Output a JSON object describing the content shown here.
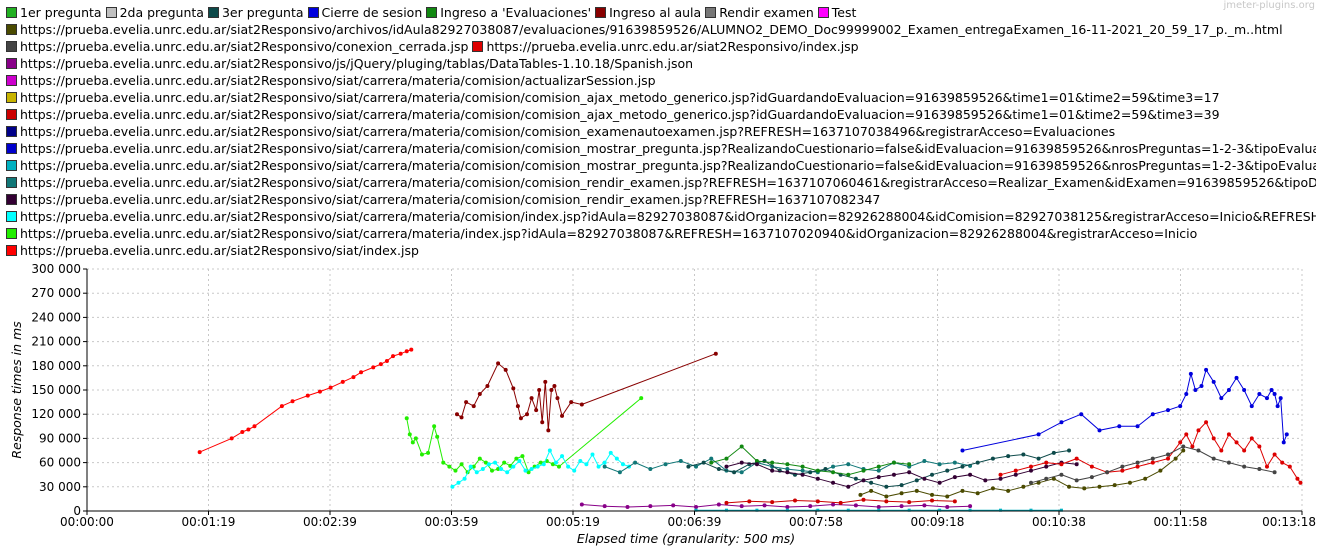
{
  "watermark": "jmeter-plugins.org",
  "legend_rows": [
    [
      {
        "name": "1er pregunta",
        "color": "#22b022"
      },
      {
        "name": "2da pregunta",
        "color": "#c0c0c0"
      },
      {
        "name": "3er pregunta",
        "color": "#0d4a4a"
      },
      {
        "name": "Cierre de sesion",
        "color": "#0000dd"
      },
      {
        "name": "Ingreso a 'Evaluaciones'",
        "color": "#118811"
      },
      {
        "name": "Ingreso al aula",
        "color": "#880000"
      },
      {
        "name": "Rendir examen",
        "color": "#777777"
      },
      {
        "name": "Test",
        "color": "#ff00ff"
      }
    ],
    [
      {
        "name": "https://prueba.evelia.unrc.edu.ar/siat2Responsivo/archivos/idAula82927038087/evaluaciones/91639859526/ALUMNO2_DEMO_Doc99999002_Examen_entregaExamen_16-11-2021_20_59_17_p._m..html",
        "color": "#4a4a00"
      }
    ],
    [
      {
        "name": "https://prueba.evelia.unrc.edu.ar/siat2Responsivo/conexion_cerrada.jsp",
        "color": "#444444"
      },
      {
        "name": "https://prueba.evelia.unrc.edu.ar/siat2Responsivo/index.jsp",
        "color": "#dd0000"
      }
    ],
    [
      {
        "name": "https://prueba.evelia.unrc.edu.ar/siat2Responsivo/js/jQuery/pluging/tablas/DataTables-1.10.18/Spanish.json",
        "color": "#880088"
      }
    ],
    [
      {
        "name": "https://prueba.evelia.unrc.edu.ar/siat2Responsivo/siat/carrera/materia/comision/actualizarSession.jsp",
        "color": "#cc00cc"
      }
    ],
    [
      {
        "name": "https://prueba.evelia.unrc.edu.ar/siat2Responsivo/siat/carrera/materia/comision/comision_ajax_metodo_generico.jsp?idGuardandoEvaluacion=91639859526&time1=01&time2=59&time3=17",
        "color": "#c8b400"
      }
    ],
    [
      {
        "name": "https://prueba.evelia.unrc.edu.ar/siat2Responsivo/siat/carrera/materia/comision/comision_ajax_metodo_generico.jsp?idGuardandoEvaluacion=91639859526&time1=01&time2=59&time3=39",
        "color": "#cc0000"
      }
    ],
    [
      {
        "name": "https://prueba.evelia.unrc.edu.ar/siat2Responsivo/siat/carrera/materia/comision/comision_examenautoexamen.jsp?REFRESH=1637107038496&registrarAcceso=Evaluaciones",
        "color": "#000088"
      }
    ],
    [
      {
        "name": "https://prueba.evelia.unrc.edu.ar/siat2Responsivo/siat/carrera/materia/comision/comision_mostrar_pregunta.jsp?RealizandoCuestionario=false&idEvaluacion=91639859526&nrosPreguntas=1-2-3&tipoEvalua",
        "color": "#0000cc"
      }
    ],
    [
      {
        "name": "https://prueba.evelia.unrc.edu.ar/siat2Responsivo/siat/carrera/materia/comision/comision_mostrar_pregunta.jsp?RealizandoCuestionario=false&idEvaluacion=91639859526&nrosPreguntas=1-2-3&tipoEvalua",
        "color": "#00b0c0"
      }
    ],
    [
      {
        "name": "https://prueba.evelia.unrc.edu.ar/siat2Responsivo/siat/carrera/materia/comision/comision_rendir_examen.jsp?REFRESH=1637107060461&registrarAcceso=Realizar_Examen&idExamen=91639859526&tipoDis",
        "color": "#117777"
      }
    ],
    [
      {
        "name": "https://prueba.evelia.unrc.edu.ar/siat2Responsivo/siat/carrera/materia/comision/comision_rendir_examen.jsp?REFRESH=1637107082347",
        "color": "#330033"
      }
    ],
    [
      {
        "name": "https://prueba.evelia.unrc.edu.ar/siat2Responsivo/siat/carrera/materia/comision/index.jsp?idAula=82927038087&idOrganizacion=82926288004&idComision=82927038125&registrarAcceso=Inicio&REFRESH=",
        "color": "#00ffff"
      }
    ],
    [
      {
        "name": "https://prueba.evelia.unrc.edu.ar/siat2Responsivo/siat/carrera/materia/index.jsp?idAula=82927038087&REFRESH=1637107020940&idOrganizacion=82926288004&registrarAcceso=Inicio",
        "color": "#22ee00"
      }
    ],
    [
      {
        "name": "https://prueba.evelia.unrc.edu.ar/siat2Responsivo/siat/index.jsp",
        "color": "#ff0000"
      }
    ]
  ],
  "chart_data": {
    "type": "line",
    "xlabel": "Elapsed time (granularity: 500 ms)",
    "ylabel": "Response times in ms",
    "xlim": [
      0,
      798
    ],
    "ylim": [
      0,
      300000
    ],
    "x_ticks": [
      {
        "value": 0,
        "label": "00:00:00"
      },
      {
        "value": 79.8,
        "label": "00:01:19"
      },
      {
        "value": 159.6,
        "label": "00:02:39"
      },
      {
        "value": 239.4,
        "label": "00:03:59"
      },
      {
        "value": 319.2,
        "label": "00:05:19"
      },
      {
        "value": 399,
        "label": "00:06:39"
      },
      {
        "value": 478.8,
        "label": "00:07:58"
      },
      {
        "value": 558.6,
        "label": "00:09:18"
      },
      {
        "value": 638.4,
        "label": "00:10:38"
      },
      {
        "value": 718.2,
        "label": "00:11:58"
      },
      {
        "value": 798,
        "label": "00:13:18"
      }
    ],
    "y_ticks": [
      {
        "value": 0,
        "label": "0"
      },
      {
        "value": 30000,
        "label": "30 000"
      },
      {
        "value": 60000,
        "label": "60 000"
      },
      {
        "value": 90000,
        "label": "90 000"
      },
      {
        "value": 120000,
        "label": "120 000"
      },
      {
        "value": 150000,
        "label": "150 000"
      },
      {
        "value": 180000,
        "label": "180 000"
      },
      {
        "value": 210000,
        "label": "210 000"
      },
      {
        "value": 240000,
        "label": "240 000"
      },
      {
        "value": 270000,
        "label": "270 000"
      },
      {
        "value": 300000,
        "label": "300 000"
      }
    ],
    "grid": true,
    "series": [
      {
        "name": "https://prueba.evelia.unrc.edu.ar/siat2Responsivo/siat/index.jsp",
        "color": "#ff0000",
        "x": [
          74,
          95,
          102,
          106,
          110,
          128,
          135,
          145,
          153,
          160,
          168,
          175,
          180,
          188,
          193,
          197,
          201,
          206,
          210,
          213
        ],
        "y": [
          73000,
          90000,
          98000,
          101000,
          105000,
          130000,
          136000,
          143000,
          148000,
          153000,
          160000,
          166000,
          172000,
          178000,
          182000,
          186000,
          192000,
          195000,
          198000,
          200000
        ]
      },
      {
        "name": "Ingreso al aula",
        "color": "#880000",
        "x": [
          243,
          246,
          249,
          254,
          258,
          263,
          270,
          275,
          280,
          283,
          285,
          289,
          292,
          295,
          297,
          299,
          301,
          303,
          305,
          307,
          309,
          312,
          318,
          325,
          413
        ],
        "y": [
          120000,
          116000,
          135000,
          130000,
          145000,
          155000,
          183000,
          175000,
          152000,
          130000,
          115000,
          120000,
          140000,
          125000,
          150000,
          110000,
          160000,
          100000,
          150000,
          155000,
          140000,
          118000,
          135000,
          132000,
          195000
        ]
      },
      {
        "name": "https://prueba.evelia.unrc.edu.ar/siat2Responsivo/siat/carrera/materia/index.jsp?idAula=82927038087&REFRESH=1637107020940&idOrganizacion=82926288004&registrarAcceso=Inicio",
        "color": "#22ee00",
        "x": [
          210,
          212,
          214,
          216,
          220,
          224,
          228,
          230,
          234,
          238,
          242,
          246,
          250,
          254,
          258,
          262,
          266,
          270,
          274,
          278,
          282,
          286,
          290,
          294,
          298,
          302,
          306,
          310,
          364
        ],
        "y": [
          115000,
          95000,
          85000,
          90000,
          70000,
          72000,
          105000,
          92000,
          60000,
          55000,
          50000,
          58000,
          48000,
          55000,
          65000,
          60000,
          50000,
          52000,
          60000,
          56000,
          65000,
          68000,
          48000,
          55000,
          60000,
          62000,
          58000,
          55000,
          140000
        ]
      },
      {
        "name": "https://prueba.evelia.unrc.edu.ar/siat2Responsivo/siat/carrera/materia/comision/index.jsp?idAula=82927038087&idOrganizacion=82926288004&idComision=82927038125&registrarAcceso=Inicio&REFRESH=",
        "color": "#00ffff",
        "x": [
          240,
          244,
          248,
          252,
          256,
          260,
          264,
          268,
          272,
          276,
          280,
          284,
          288,
          292,
          296,
          300,
          304,
          308,
          312,
          316,
          320,
          324,
          328,
          332,
          336,
          340,
          344,
          348,
          352,
          356
        ],
        "y": [
          30000,
          35000,
          40000,
          55000,
          48000,
          52000,
          58000,
          60000,
          52000,
          48000,
          55000,
          62000,
          50000,
          52000,
          55000,
          58000,
          75000,
          60000,
          68000,
          55000,
          50000,
          62000,
          58000,
          70000,
          55000,
          60000,
          72000,
          65000,
          58000,
          55000
        ]
      },
      {
        "name": "https://prueba.evelia.unrc.edu.ar/siat2Responsivo/siat/carrera/materia/comision/comision_rendir_examen.jsp?REFRESH=1637107060461&registrarAcceso=Realizar_Examen&idExamen=91639859526&tipoDis",
        "color": "#117777",
        "x": [
          340,
          350,
          360,
          370,
          380,
          390,
          400,
          410,
          420,
          430,
          440,
          450,
          460,
          470,
          480,
          490,
          500,
          510,
          520,
          530,
          540,
          550,
          560,
          570,
          580
        ],
        "y": [
          55000,
          48000,
          60000,
          52000,
          58000,
          62000,
          55000,
          65000,
          50000,
          48000,
          60000,
          55000,
          52000,
          50000,
          48000,
          55000,
          58000,
          52000,
          50000,
          60000,
          55000,
          62000,
          58000,
          60000,
          56000
        ]
      },
      {
        "name": "3er pregunta",
        "color": "#0d4a4a",
        "x": [
          395,
          405,
          415,
          425,
          435,
          445,
          455,
          465,
          475,
          485,
          495,
          505,
          515,
          525,
          535,
          545,
          555,
          565,
          575,
          585,
          595,
          605,
          615,
          625,
          635,
          645
        ],
        "y": [
          55000,
          60000,
          52000,
          48000,
          58000,
          62000,
          50000,
          45000,
          48000,
          52000,
          45000,
          40000,
          35000,
          30000,
          32000,
          38000,
          45000,
          50000,
          55000,
          60000,
          65000,
          68000,
          70000,
          65000,
          72000,
          75000
        ]
      },
      {
        "name": "Ingreso a 'Evaluaciones'",
        "color": "#118811",
        "x": [
          410,
          420,
          430,
          440,
          450,
          460,
          470,
          480,
          490,
          500,
          510,
          520,
          530,
          540
        ],
        "y": [
          60000,
          65000,
          80000,
          62000,
          60000,
          58000,
          55000,
          50000,
          48000,
          45000,
          50000,
          55000,
          60000,
          58000
        ]
      },
      {
        "name": "https://prueba.evelia.unrc.edu.ar/siat2Responsivo/siat/carrera/materia/comision/comision_rendir_examen.jsp?REFRESH=1637107082347",
        "color": "#330033",
        "x": [
          420,
          430,
          440,
          450,
          460,
          470,
          480,
          490,
          500,
          510,
          520,
          530,
          540,
          550,
          560,
          570,
          580,
          590,
          600,
          610,
          620,
          630,
          640,
          650
        ],
        "y": [
          55000,
          60000,
          58000,
          50000,
          48000,
          45000,
          40000,
          35000,
          30000,
          38000,
          42000,
          45000,
          48000,
          40000,
          35000,
          42000,
          45000,
          38000,
          40000,
          45000,
          50000,
          55000,
          60000,
          58000
        ]
      },
      {
        "name": "https://prueba.evelia.unrc.edu.ar/siat2Responsivo/archivos/idAula82927038087/evaluaciones/91639859526/ALUMNO2_DEMO_Doc99999002_Examen_entregaExamen_16-11-2021_20_59_17_p._m..html",
        "color": "#4a4a00",
        "x": [
          508,
          515,
          525,
          535,
          545,
          555,
          565,
          575,
          585,
          595,
          605,
          615,
          625,
          635,
          645,
          655,
          665,
          675,
          685,
          695,
          705,
          715,
          720
        ],
        "y": [
          20000,
          25000,
          18000,
          22000,
          25000,
          20000,
          18000,
          25000,
          22000,
          28000,
          25000,
          30000,
          35000,
          40000,
          30000,
          28000,
          30000,
          32000,
          35000,
          40000,
          50000,
          65000,
          75000
        ]
      },
      {
        "name": "Cierre de sesion",
        "color": "#0000dd",
        "x": [
          575,
          625,
          640,
          653,
          665,
          678,
          690,
          700,
          710,
          718,
          722,
          725,
          728,
          732,
          735,
          740,
          745,
          750,
          755,
          760,
          765,
          770,
          775,
          778,
          780,
          782,
          784,
          786,
          788
        ],
        "y": [
          75000,
          95000,
          110000,
          120000,
          100000,
          105000,
          105000,
          120000,
          125000,
          130000,
          145000,
          170000,
          150000,
          155000,
          175000,
          160000,
          140000,
          150000,
          165000,
          150000,
          130000,
          145000,
          140000,
          150000,
          145000,
          130000,
          140000,
          85000,
          95000
        ]
      },
      {
        "name": "https://prueba.evelia.unrc.edu.ar/siat2Responsivo/index.jsp",
        "color": "#dd0000",
        "x": [
          600,
          610,
          620,
          630,
          640,
          650,
          660,
          670,
          680,
          690,
          700,
          710,
          718,
          722,
          726,
          730,
          735,
          740,
          745,
          750,
          755,
          760,
          765,
          770,
          775,
          780,
          785,
          790,
          795,
          797
        ],
        "y": [
          45000,
          50000,
          55000,
          60000,
          58000,
          65000,
          55000,
          48000,
          50000,
          55000,
          60000,
          65000,
          85000,
          95000,
          80000,
          100000,
          110000,
          90000,
          75000,
          95000,
          85000,
          75000,
          90000,
          80000,
          55000,
          70000,
          60000,
          55000,
          40000,
          35000
        ]
      },
      {
        "name": "https://prueba.evelia.unrc.edu.ar/siat2Responsivo/conexion_cerrada.jsp",
        "color": "#444444",
        "x": [
          620,
          630,
          640,
          650,
          660,
          670,
          680,
          690,
          700,
          710,
          720,
          730,
          740,
          750,
          760,
          770,
          780
        ],
        "y": [
          35000,
          40000,
          45000,
          38000,
          42000,
          48000,
          55000,
          60000,
          65000,
          70000,
          80000,
          75000,
          65000,
          60000,
          55000,
          52000,
          48000
        ]
      },
      {
        "name": "https://prueba.evelia.unrc.edu.ar/siat2Responsivo/js/jQuery/pluging/tablas/DataTables-1.10.18/Spanish.json",
        "color": "#880088",
        "x": [
          325,
          340,
          355,
          370,
          385,
          400,
          415,
          430,
          445,
          460,
          475,
          490,
          505,
          520,
          535,
          550,
          565,
          580
        ],
        "y": [
          8000,
          6000,
          5000,
          6000,
          7000,
          5000,
          8000,
          6000,
          7000,
          5000,
          6000,
          8000,
          7000,
          5000,
          6000,
          7000,
          5000,
          6000
        ]
      },
      {
        "name": "https://prueba.evelia.unrc.edu.ar/siat2Responsivo/siat/carrera/materia/comision/comision_ajax_metodo_generico.jsp?idGuardandoEvaluacion=91639859526&time1=01&time2=59&time3=39",
        "color": "#cc0000",
        "x": [
          420,
          435,
          450,
          465,
          480,
          495,
          510,
          525,
          540,
          555,
          570
        ],
        "y": [
          10000,
          12000,
          11000,
          13000,
          12000,
          10000,
          14000,
          12000,
          11000,
          13000,
          12000
        ]
      },
      {
        "name": "https://prueba.evelia.unrc.edu.ar/siat2Responsivo/siat/carrera/materia/comision/comision_mostrar_pregunta.jsp?RealizandoCuestionario=false&idEvaluacion=91639859526&nrosPreguntas=1-2-3&tipoEvalua",
        "color": "#00b0c0",
        "x": [
          400,
          420,
          440,
          460,
          480,
          500,
          520,
          540,
          560,
          580,
          600,
          620,
          640
        ],
        "y": [
          1000,
          1000,
          1000,
          1000,
          1000,
          1000,
          1000,
          1000,
          1000,
          1000,
          1000,
          1000,
          1000
        ]
      }
    ]
  }
}
